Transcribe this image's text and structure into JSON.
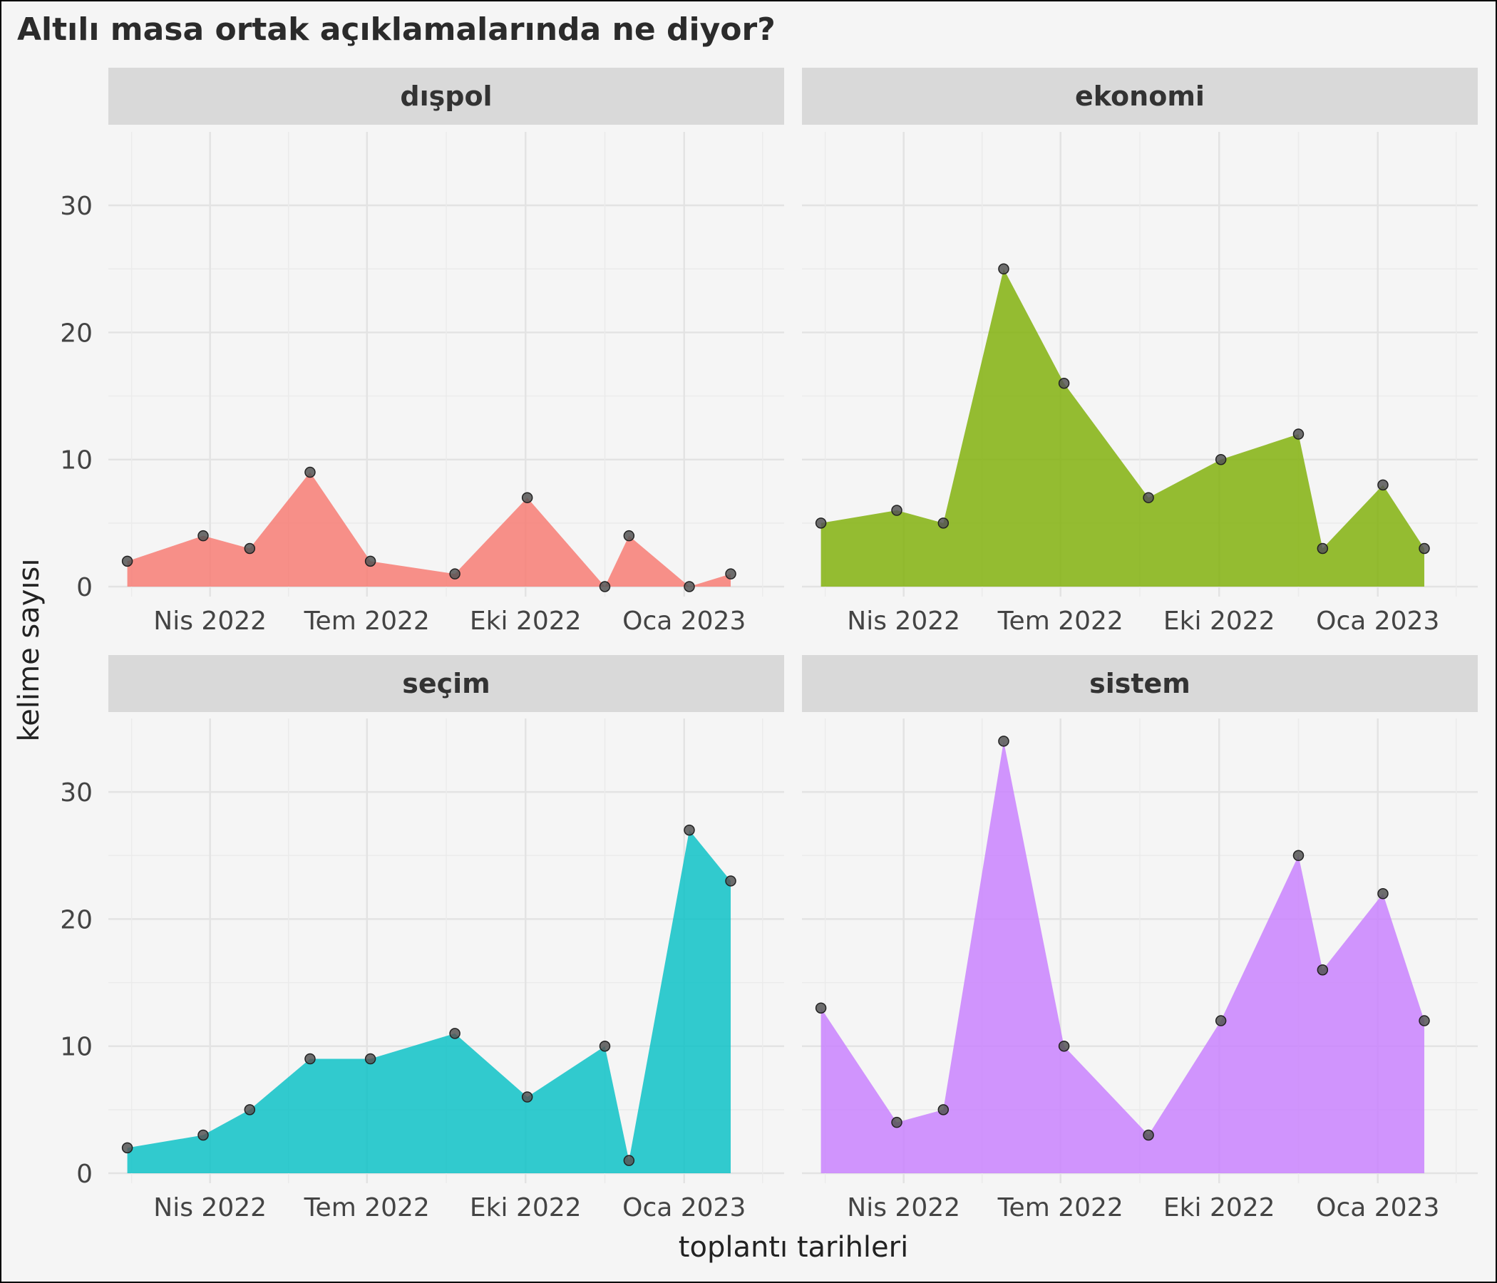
{
  "chart_data": {
    "type": "area",
    "title": "Altılı masa ortak açıklamalarında ne diyor?",
    "xlabel": "toplantı tarihleri",
    "ylabel": "kelime sayısı",
    "ylim": [
      0,
      35
    ],
    "y_ticks": [
      0,
      10,
      20,
      30
    ],
    "x_tick_labels": [
      {
        "label": "Nis 2022",
        "date": "2022-04-01"
      },
      {
        "label": "Tem 2022",
        "date": "2022-07-01"
      },
      {
        "label": "Eki 2022",
        "date": "2022-10-01"
      },
      {
        "label": "Oca 2023",
        "date": "2023-01-01"
      }
    ],
    "x_range": [
      "2022-02-01",
      "2023-02-28"
    ],
    "grid": true,
    "legend": "none",
    "layout": "facet 2x2",
    "panels": [
      {
        "name": "dışpol",
        "color": "#f8766d",
        "points": [
          {
            "x": "2022-02-12",
            "y": 2
          },
          {
            "x": "2022-03-28",
            "y": 4
          },
          {
            "x": "2022-04-24",
            "y": 3
          },
          {
            "x": "2022-05-29",
            "y": 9
          },
          {
            "x": "2022-07-03",
            "y": 2
          },
          {
            "x": "2022-08-21",
            "y": 1
          },
          {
            "x": "2022-10-02",
            "y": 7
          },
          {
            "x": "2022-11-16",
            "y": 0
          },
          {
            "x": "2022-11-30",
            "y": 4
          },
          {
            "x": "2023-01-04",
            "y": 0
          },
          {
            "x": "2023-01-28",
            "y": 1
          }
        ]
      },
      {
        "name": "ekonomi",
        "color": "#7cae00",
        "points": [
          {
            "x": "2022-02-12",
            "y": 5
          },
          {
            "x": "2022-03-28",
            "y": 6
          },
          {
            "x": "2022-04-24",
            "y": 5
          },
          {
            "x": "2022-05-29",
            "y": 25
          },
          {
            "x": "2022-07-03",
            "y": 16
          },
          {
            "x": "2022-08-21",
            "y": 7
          },
          {
            "x": "2022-10-02",
            "y": 10
          },
          {
            "x": "2022-11-16",
            "y": 12
          },
          {
            "x": "2022-11-30",
            "y": 3
          },
          {
            "x": "2023-01-04",
            "y": 8
          },
          {
            "x": "2023-01-28",
            "y": 3
          }
        ]
      },
      {
        "name": "seçim",
        "color": "#00bfc4",
        "points": [
          {
            "x": "2022-02-12",
            "y": 2
          },
          {
            "x": "2022-03-28",
            "y": 3
          },
          {
            "x": "2022-04-24",
            "y": 5
          },
          {
            "x": "2022-05-29",
            "y": 9
          },
          {
            "x": "2022-07-03",
            "y": 9
          },
          {
            "x": "2022-08-21",
            "y": 11
          },
          {
            "x": "2022-10-02",
            "y": 6
          },
          {
            "x": "2022-11-16",
            "y": 10
          },
          {
            "x": "2022-11-30",
            "y": 1
          },
          {
            "x": "2023-01-04",
            "y": 27
          },
          {
            "x": "2023-01-28",
            "y": 23
          }
        ]
      },
      {
        "name": "sistem",
        "color": "#c77cff",
        "points": [
          {
            "x": "2022-02-12",
            "y": 13
          },
          {
            "x": "2022-03-28",
            "y": 4
          },
          {
            "x": "2022-04-24",
            "y": 5
          },
          {
            "x": "2022-05-29",
            "y": 34
          },
          {
            "x": "2022-07-03",
            "y": 10
          },
          {
            "x": "2022-08-21",
            "y": 3
          },
          {
            "x": "2022-10-02",
            "y": 12
          },
          {
            "x": "2022-11-16",
            "y": 25
          },
          {
            "x": "2022-11-30",
            "y": 16
          },
          {
            "x": "2023-01-04",
            "y": 22
          },
          {
            "x": "2023-01-28",
            "y": 12
          }
        ]
      }
    ]
  }
}
